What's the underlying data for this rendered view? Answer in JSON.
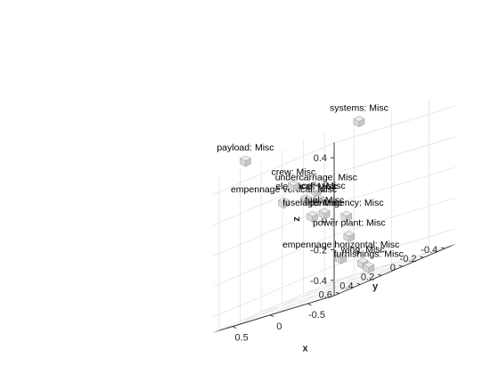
{
  "chart_data": {
    "type": "scatter",
    "projection": "3d",
    "grid": true,
    "xlabel": "x",
    "ylabel": "y",
    "zlabel": "z",
    "xlim": [
      -0.85,
      0.75
    ],
    "ylim": [
      -0.5,
      0.65
    ],
    "zlim": [
      -0.5,
      0.5
    ],
    "xticks": [
      -0.5,
      0,
      0.5
    ],
    "yticks": [
      -0.4,
      -0.2,
      0,
      0.2,
      0.4,
      0.6
    ],
    "zticks": [
      -0.4,
      -0.2,
      0,
      0.2,
      0.4
    ],
    "xtick_labels": [
      "-0.5",
      "0",
      "0.5"
    ],
    "ytick_labels": [
      "-0.4",
      "-0.2",
      "0",
      "0.2",
      "0.4",
      "0.6"
    ],
    "ztick_labels": [
      "-0.4",
      "-0.2",
      "0",
      "0.2",
      "0.4"
    ],
    "marker": "cube",
    "points": [
      {
        "label": "systems: Misc",
        "x": -0.55,
        "y": 0.2,
        "z": 0.55
      },
      {
        "label": "payload: Misc",
        "x": 0.4,
        "y": 0.6,
        "z": 0.55
      },
      {
        "label": "nacelle: Misc",
        "x": -0.5,
        "y": 0.55,
        "z": 0.15
      },
      {
        "label": "undercarriage: Misc",
        "x": 0.02,
        "y": 0.2,
        "z": 0.18
      },
      {
        "label": "electrical: Misc",
        "x": 0.04,
        "y": 0.28,
        "z": 0.15
      },
      {
        "label": "empennage vertical: Misc",
        "x": 0.24,
        "y": 0.35,
        "z": 0.18
      },
      {
        "label": "crew: Misc",
        "x": 0.49,
        "y": 0.08,
        "z": 0.25
      },
      {
        "label": "contingency: Misc",
        "x": -0.13,
        "y": 0.02,
        "z": -0.06
      },
      {
        "label": "fuel: Misc",
        "x": 0.19,
        "y": 0.0,
        "z": 0.0
      },
      {
        "label": "fuselage: Misc",
        "x": 0.42,
        "y": -0.05,
        "z": 0.0
      },
      {
        "label": "empennage horizontal: Misc",
        "x": -0.45,
        "y": 0.3,
        "z": -0.3
      },
      {
        "label": "power plant: Misc",
        "x": -0.11,
        "y": -0.02,
        "z": -0.2
      },
      {
        "label": "wing: Misc",
        "x": -0.32,
        "y": 0.0,
        "z": -0.4
      },
      {
        "label": "furnishings: Misc",
        "x": -0.23,
        "y": -0.12,
        "z": -0.45
      }
    ]
  }
}
